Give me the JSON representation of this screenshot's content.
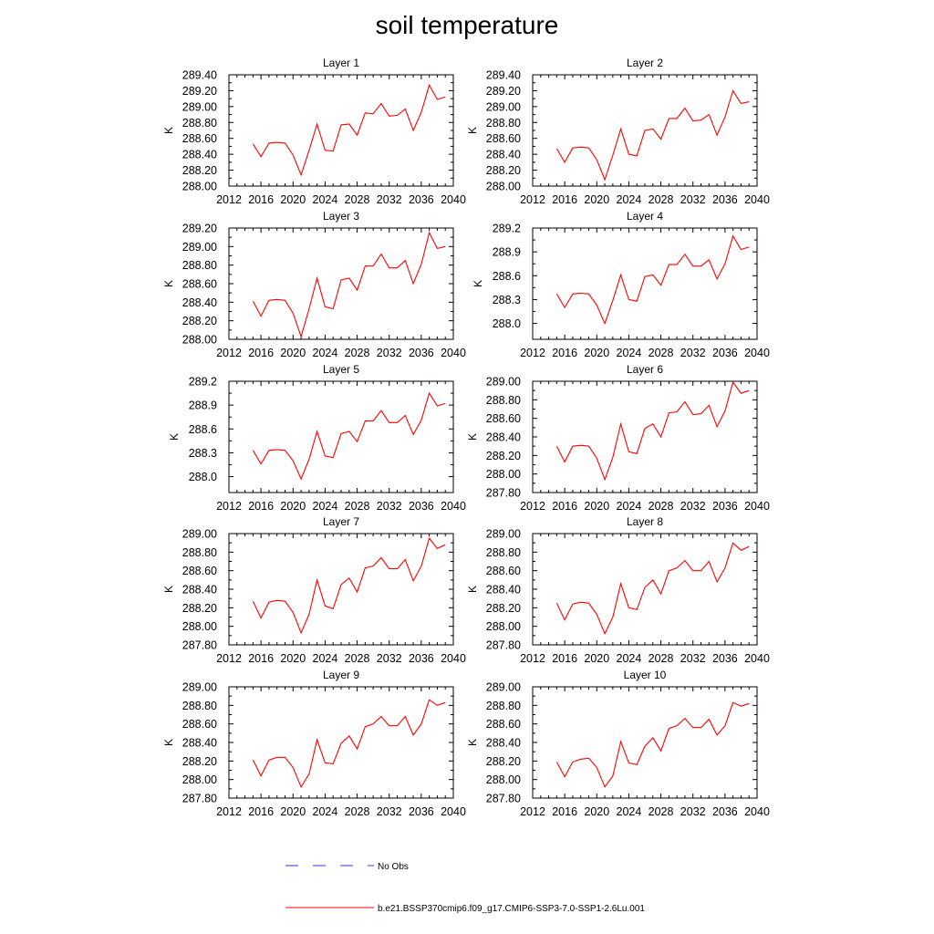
{
  "figure": {
    "title": "soil temperature",
    "x_tick_labels": [
      "2012",
      "2016",
      "2020",
      "2024",
      "2028",
      "2032",
      "2036",
      "2040"
    ],
    "legend": [
      {
        "label": "No Obs",
        "color": "#3333cc",
        "style": "dashed"
      },
      {
        "label": "b.e21.BSSP370cmip6.f09_g17.CMIP6-SSP3-7.0-SSP1-2.6Lu.001",
        "color": "#ff0000",
        "style": "solid"
      }
    ]
  },
  "chart_data": [
    {
      "type": "line",
      "title": "Layer 1",
      "xlabel": "",
      "ylabel": "K",
      "xlim": [
        2012,
        2040
      ],
      "ylim": [
        288.0,
        289.4
      ],
      "yticks": [
        "288.00",
        "288.20",
        "288.40",
        "288.60",
        "288.80",
        "289.00",
        "289.20",
        "289.40"
      ],
      "ytick_values": [
        288.0,
        288.2,
        288.4,
        288.6,
        288.8,
        289.0,
        289.2,
        289.4
      ],
      "series": [
        {
          "color": "#ff0000",
          "x": [
            2015,
            2016,
            2017,
            2018,
            2019,
            2020,
            2021,
            2022,
            2023,
            2024,
            2025,
            2026,
            2027,
            2028,
            2029,
            2030,
            2031,
            2032,
            2033,
            2034,
            2035,
            2036,
            2037,
            2038,
            2039
          ],
          "values": [
            288.53,
            288.37,
            288.54,
            288.55,
            288.54,
            288.39,
            288.14,
            288.45,
            288.78,
            288.45,
            288.44,
            288.77,
            288.78,
            288.64,
            288.92,
            288.91,
            289.04,
            288.88,
            288.89,
            288.97,
            288.7,
            288.93,
            289.27,
            289.09,
            289.12
          ]
        }
      ]
    },
    {
      "type": "line",
      "title": "Layer 2",
      "xlabel": "",
      "ylabel": "K",
      "xlim": [
        2012,
        2040
      ],
      "ylim": [
        288.0,
        289.4
      ],
      "yticks": [
        "288.00",
        "288.20",
        "288.40",
        "288.60",
        "288.80",
        "289.00",
        "289.20",
        "289.40"
      ],
      "ytick_values": [
        288.0,
        288.2,
        288.4,
        288.6,
        288.8,
        289.0,
        289.2,
        289.4
      ],
      "series": [
        {
          "color": "#ff0000",
          "x": [
            2015,
            2016,
            2017,
            2018,
            2019,
            2020,
            2021,
            2022,
            2023,
            2024,
            2025,
            2026,
            2027,
            2028,
            2029,
            2030,
            2031,
            2032,
            2033,
            2034,
            2035,
            2036,
            2037,
            2038,
            2039
          ],
          "values": [
            288.47,
            288.3,
            288.48,
            288.49,
            288.48,
            288.33,
            288.08,
            288.39,
            288.72,
            288.4,
            288.38,
            288.7,
            288.72,
            288.59,
            288.85,
            288.85,
            288.98,
            288.82,
            288.83,
            288.9,
            288.64,
            288.87,
            289.2,
            289.04,
            289.06
          ]
        }
      ]
    },
    {
      "type": "line",
      "title": "Layer 3",
      "xlabel": "",
      "ylabel": "K",
      "xlim": [
        2012,
        2040
      ],
      "ylim": [
        288.0,
        289.2
      ],
      "yticks": [
        "288.00",
        "288.20",
        "288.40",
        "288.60",
        "288.80",
        "289.00",
        "289.20"
      ],
      "ytick_values": [
        288.0,
        288.2,
        288.4,
        288.6,
        288.8,
        289.0,
        289.2
      ],
      "series": [
        {
          "color": "#ff0000",
          "x": [
            2015,
            2016,
            2017,
            2018,
            2019,
            2020,
            2021,
            2022,
            2023,
            2024,
            2025,
            2026,
            2027,
            2028,
            2029,
            2030,
            2031,
            2032,
            2033,
            2034,
            2035,
            2036,
            2037,
            2038,
            2039
          ],
          "values": [
            288.41,
            288.25,
            288.42,
            288.43,
            288.42,
            288.28,
            288.03,
            288.33,
            288.66,
            288.35,
            288.33,
            288.64,
            288.66,
            288.53,
            288.79,
            288.79,
            288.92,
            288.77,
            288.77,
            288.85,
            288.6,
            288.81,
            289.15,
            288.98,
            289.0
          ]
        }
      ]
    },
    {
      "type": "line",
      "title": "Layer 4",
      "xlabel": "",
      "ylabel": "K",
      "xlim": [
        2012,
        2040
      ],
      "ylim": [
        287.8,
        289.2
      ],
      "yticks": [
        "288.0",
        "288.3",
        "288.6",
        "288.9",
        "289.2"
      ],
      "ytick_values": [
        288.0,
        288.3,
        288.6,
        288.9,
        289.2
      ],
      "series": [
        {
          "color": "#ff0000",
          "x": [
            2015,
            2016,
            2017,
            2018,
            2019,
            2020,
            2021,
            2022,
            2023,
            2024,
            2025,
            2026,
            2027,
            2028,
            2029,
            2030,
            2031,
            2032,
            2033,
            2034,
            2035,
            2036,
            2037,
            2038,
            2039
          ],
          "values": [
            288.37,
            288.2,
            288.37,
            288.38,
            288.37,
            288.23,
            288.0,
            288.29,
            288.61,
            288.3,
            288.28,
            288.59,
            288.61,
            288.48,
            288.74,
            288.74,
            288.87,
            288.72,
            288.72,
            288.8,
            288.56,
            288.75,
            289.1,
            288.93,
            288.96
          ]
        }
      ]
    },
    {
      "type": "line",
      "title": "Layer 5",
      "xlabel": "",
      "ylabel": "K",
      "xlim": [
        2012,
        2040
      ],
      "ylim": [
        287.8,
        289.2
      ],
      "yticks": [
        "288.0",
        "288.3",
        "288.6",
        "288.9",
        "289.2"
      ],
      "ytick_values": [
        288.0,
        288.3,
        288.6,
        288.9,
        289.2
      ],
      "series": [
        {
          "color": "#ff0000",
          "x": [
            2015,
            2016,
            2017,
            2018,
            2019,
            2020,
            2021,
            2022,
            2023,
            2024,
            2025,
            2026,
            2027,
            2028,
            2029,
            2030,
            2031,
            2032,
            2033,
            2034,
            2035,
            2036,
            2037,
            2038,
            2039
          ],
          "values": [
            288.33,
            288.16,
            288.33,
            288.34,
            288.33,
            288.2,
            287.97,
            288.22,
            288.57,
            288.26,
            288.24,
            288.54,
            288.57,
            288.44,
            288.7,
            288.7,
            288.83,
            288.68,
            288.68,
            288.77,
            288.53,
            288.71,
            289.05,
            288.89,
            288.92
          ]
        }
      ]
    },
    {
      "type": "line",
      "title": "Layer 6",
      "xlabel": "",
      "ylabel": "K",
      "xlim": [
        2012,
        2040
      ],
      "ylim": [
        287.8,
        289.0
      ],
      "yticks": [
        "287.80",
        "288.00",
        "288.20",
        "288.40",
        "288.60",
        "288.80",
        "289.00"
      ],
      "ytick_values": [
        287.8,
        288.0,
        288.2,
        288.4,
        288.6,
        288.8,
        289.0
      ],
      "series": [
        {
          "color": "#ff0000",
          "x": [
            2015,
            2016,
            2017,
            2018,
            2019,
            2020,
            2021,
            2022,
            2023,
            2024,
            2025,
            2026,
            2027,
            2028,
            2029,
            2030,
            2031,
            2032,
            2033,
            2034,
            2035,
            2036,
            2037,
            2038,
            2039
          ],
          "values": [
            288.3,
            288.13,
            288.3,
            288.31,
            288.3,
            288.17,
            287.94,
            288.18,
            288.54,
            288.24,
            288.22,
            288.49,
            288.54,
            288.4,
            288.66,
            288.67,
            288.78,
            288.64,
            288.65,
            288.74,
            288.51,
            288.68,
            288.99,
            288.87,
            288.9
          ]
        }
      ]
    },
    {
      "type": "line",
      "title": "Layer 7",
      "xlabel": "",
      "ylabel": "K",
      "xlim": [
        2012,
        2040
      ],
      "ylim": [
        287.8,
        289.0
      ],
      "yticks": [
        "287.80",
        "288.00",
        "288.20",
        "288.40",
        "288.60",
        "288.80",
        "289.00"
      ],
      "ytick_values": [
        287.8,
        288.0,
        288.2,
        288.4,
        288.6,
        288.8,
        289.0
      ],
      "series": [
        {
          "color": "#ff0000",
          "x": [
            2015,
            2016,
            2017,
            2018,
            2019,
            2020,
            2021,
            2022,
            2023,
            2024,
            2025,
            2026,
            2027,
            2028,
            2029,
            2030,
            2031,
            2032,
            2033,
            2034,
            2035,
            2036,
            2037,
            2038,
            2039
          ],
          "values": [
            288.27,
            288.09,
            288.26,
            288.28,
            288.27,
            288.15,
            287.93,
            288.13,
            288.5,
            288.22,
            288.19,
            288.45,
            288.52,
            288.37,
            288.63,
            288.65,
            288.74,
            288.62,
            288.62,
            288.72,
            288.49,
            288.65,
            288.95,
            288.84,
            288.88
          ]
        }
      ]
    },
    {
      "type": "line",
      "title": "Layer 8",
      "xlabel": "",
      "ylabel": "K",
      "xlim": [
        2012,
        2040
      ],
      "ylim": [
        287.8,
        289.0
      ],
      "yticks": [
        "287.80",
        "288.00",
        "288.20",
        "288.40",
        "288.60",
        "288.80",
        "289.00"
      ],
      "ytick_values": [
        287.8,
        288.0,
        288.2,
        288.4,
        288.6,
        288.8,
        289.0
      ],
      "series": [
        {
          "color": "#ff0000",
          "x": [
            2015,
            2016,
            2017,
            2018,
            2019,
            2020,
            2021,
            2022,
            2023,
            2024,
            2025,
            2026,
            2027,
            2028,
            2029,
            2030,
            2031,
            2032,
            2033,
            2034,
            2035,
            2036,
            2037,
            2038,
            2039
          ],
          "values": [
            288.25,
            288.07,
            288.24,
            288.26,
            288.25,
            288.13,
            287.92,
            288.1,
            288.46,
            288.2,
            288.18,
            288.42,
            288.5,
            288.35,
            288.6,
            288.63,
            288.71,
            288.6,
            288.6,
            288.7,
            288.48,
            288.63,
            288.9,
            288.82,
            288.86
          ]
        }
      ]
    },
    {
      "type": "line",
      "title": "Layer 9",
      "xlabel": "",
      "ylabel": "K",
      "xlim": [
        2012,
        2040
      ],
      "ylim": [
        287.8,
        289.0
      ],
      "yticks": [
        "287.80",
        "288.00",
        "288.20",
        "288.40",
        "288.60",
        "288.80",
        "289.00"
      ],
      "ytick_values": [
        287.8,
        288.0,
        288.2,
        288.4,
        288.6,
        288.8,
        289.0
      ],
      "series": [
        {
          "color": "#ff0000",
          "x": [
            2015,
            2016,
            2017,
            2018,
            2019,
            2020,
            2021,
            2022,
            2023,
            2024,
            2025,
            2026,
            2027,
            2028,
            2029,
            2030,
            2031,
            2032,
            2033,
            2034,
            2035,
            2036,
            2037,
            2038,
            2039
          ],
          "values": [
            288.21,
            288.04,
            288.21,
            288.24,
            288.24,
            288.13,
            287.92,
            288.06,
            288.43,
            288.18,
            288.17,
            288.39,
            288.47,
            288.33,
            288.57,
            288.6,
            288.68,
            288.58,
            288.58,
            288.68,
            288.48,
            288.6,
            288.86,
            288.8,
            288.83
          ]
        }
      ]
    },
    {
      "type": "line",
      "title": "Layer 10",
      "xlabel": "",
      "ylabel": "K",
      "xlim": [
        2012,
        2040
      ],
      "ylim": [
        287.8,
        289.0
      ],
      "yticks": [
        "287.80",
        "288.00",
        "288.20",
        "288.40",
        "288.60",
        "288.80",
        "289.00"
      ],
      "ytick_values": [
        287.8,
        288.0,
        288.2,
        288.4,
        288.6,
        288.8,
        289.0
      ],
      "series": [
        {
          "color": "#ff0000",
          "x": [
            2015,
            2016,
            2017,
            2018,
            2019,
            2020,
            2021,
            2022,
            2023,
            2024,
            2025,
            2026,
            2027,
            2028,
            2029,
            2030,
            2031,
            2032,
            2033,
            2034,
            2035,
            2036,
            2037,
            2038,
            2039
          ],
          "values": [
            288.19,
            288.03,
            288.19,
            288.22,
            288.23,
            288.13,
            287.92,
            288.04,
            288.41,
            288.18,
            288.16,
            288.36,
            288.45,
            288.31,
            288.55,
            288.58,
            288.66,
            288.56,
            288.56,
            288.65,
            288.48,
            288.58,
            288.83,
            288.79,
            288.82
          ]
        }
      ]
    }
  ]
}
